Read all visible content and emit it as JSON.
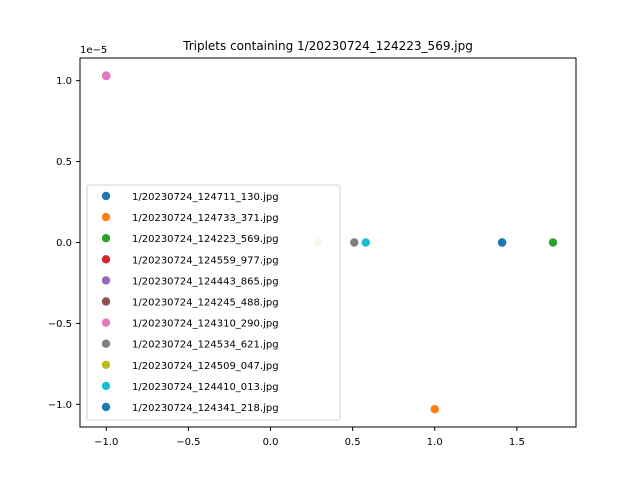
{
  "chart_data": {
    "type": "scatter",
    "title": "Triplets containing 1/20230724_124223_569.jpg",
    "xlabel": "",
    "ylabel": "",
    "y_offset_text": "1e−5",
    "xlim": [
      -1.16,
      1.86
    ],
    "ylim": [
      -1.14,
      1.14
    ],
    "y_scale_exponent": -5,
    "grid": false,
    "legend_position": "lower-left",
    "x_ticks": [
      -1.0,
      -0.5,
      0.0,
      0.5,
      1.0,
      1.5
    ],
    "x_tick_labels": [
      "−1.0",
      "−0.5",
      "0.0",
      "0.5",
      "1.0",
      "1.5"
    ],
    "y_ticks": [
      -1.0,
      -0.5,
      0.0,
      0.5,
      1.0
    ],
    "y_tick_labels": [
      "−1.0",
      "−0.5",
      "0.0",
      "0.5",
      "1.0"
    ],
    "series": [
      {
        "name": "1/20230724_124711_130.jpg",
        "color": "#1f77b4",
        "x": 1.41,
        "y": 0.0
      },
      {
        "name": "1/20230724_124733_371.jpg",
        "color": "#ff7f0e",
        "x": 1.0,
        "y": -1.03
      },
      {
        "name": "1/20230724_124223_569.jpg",
        "color": "#2ca02c",
        "x": 1.72,
        "y": 0.0
      },
      {
        "name": "1/20230724_124559_977.jpg",
        "color": "#d62728",
        "x": -1.0,
        "y": 1.03
      },
      {
        "name": "1/20230724_124443_865.jpg",
        "color": "#9467bd",
        "x": -1.0,
        "y": 1.03
      },
      {
        "name": "1/20230724_124245_488.jpg",
        "color": "#8c564b",
        "x": -1.0,
        "y": 1.03
      },
      {
        "name": "1/20230724_124310_290.jpg",
        "color": "#e377c2",
        "x": -1.0,
        "y": 1.03
      },
      {
        "name": "1/20230724_124534_621.jpg",
        "color": "#7f7f7f",
        "x": 0.51,
        "y": 0.0
      },
      {
        "name": "1/20230724_124509_047.jpg",
        "color": "#bcbd22",
        "x": 0.29,
        "y": 0.0
      },
      {
        "name": "1/20230724_124410_013.jpg",
        "color": "#17becf",
        "x": 0.58,
        "y": 0.0
      },
      {
        "name": "1/20230724_124341_218.jpg",
        "color": "#1f77b4",
        "x": 1.41,
        "y": 0.0
      }
    ]
  }
}
